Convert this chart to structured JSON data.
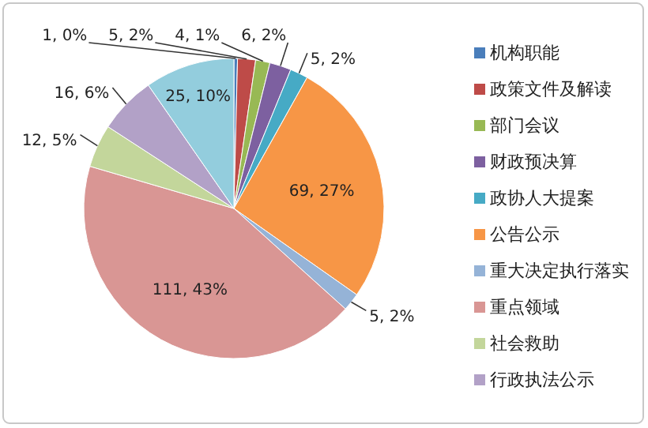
{
  "chart_data": {
    "type": "pie",
    "categories": [
      "机构职能",
      "政策文件及解读",
      "部门会议",
      "财政预决算",
      "政协人大提案",
      "公告公示",
      "重大决定执行落实",
      "重点领域",
      "社会救助",
      "行政执法公示",
      null
    ],
    "values": [
      1,
      5,
      4,
      6,
      5,
      69,
      5,
      111,
      12,
      16,
      25
    ],
    "colors": [
      "#4a7ebb",
      "#be4b48",
      "#98b954",
      "#7d60a0",
      "#46aac5",
      "#f79646",
      "#95b3d7",
      "#d99694",
      "#c3d69b",
      "#b2a1c7",
      "#93cddd"
    ],
    "value_labels": [
      "1, 0%",
      "5, 2%",
      "4, 1%",
      "6, 2%",
      "5, 2%",
      "69, 27%",
      "5, 2%",
      "111, 43%",
      "12, 5%",
      "16, 6%",
      "25, 10%"
    ],
    "legend": "right"
  }
}
